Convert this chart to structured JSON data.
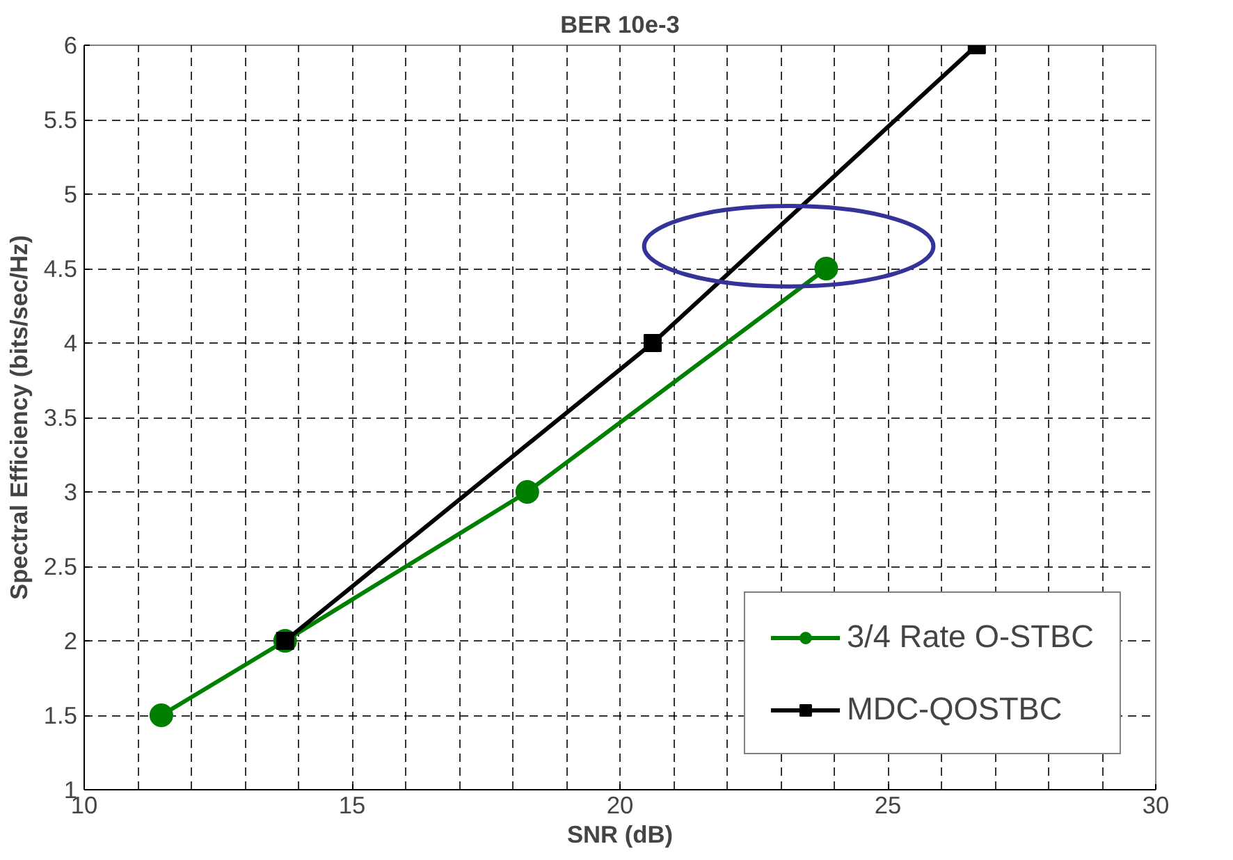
{
  "chart_data": {
    "type": "line",
    "title": "BER 10e-3",
    "xlabel": "SNR (dB)",
    "ylabel": "Spectral Efficiency (bits/sec/Hz)",
    "series": [
      {
        "name": "3/4 Rate O-STBC",
        "color": "#008000",
        "marker": "circle",
        "x": [
          11.44,
          13.75,
          18.27,
          23.85
        ],
        "values": [
          1.5,
          2,
          3,
          4.5
        ]
      },
      {
        "name": "MDC-QOSTBC",
        "color": "#000000",
        "marker": "square",
        "x": [
          13.75,
          20.61,
          26.66
        ],
        "values": [
          2,
          4,
          6
        ]
      }
    ],
    "xlim": [
      10,
      30
    ],
    "ylim": [
      1,
      6
    ],
    "xticks": [
      10,
      15,
      20,
      25,
      30
    ],
    "yticks": [
      1,
      1.5,
      2,
      2.5,
      3,
      3.5,
      4,
      4.5,
      5,
      5.5,
      6
    ],
    "grid": true,
    "legend": "bottom right",
    "line_style": "solid"
  }
}
